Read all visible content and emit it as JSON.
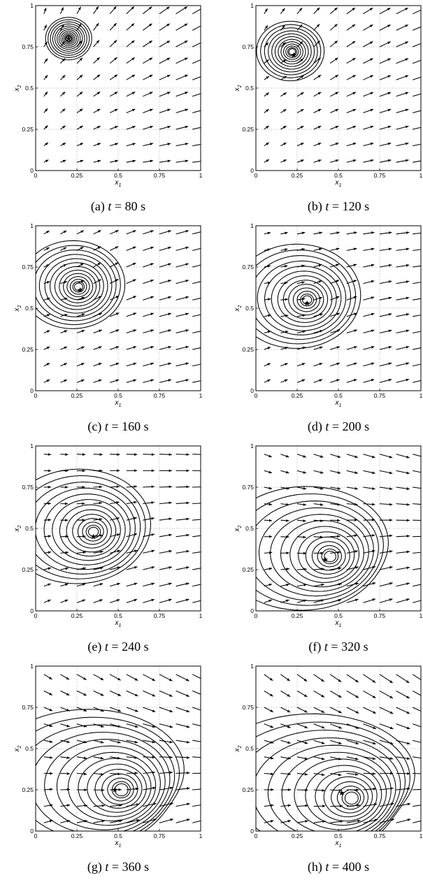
{
  "chart_data": [
    {
      "type": "contour",
      "panel": "a",
      "caption": {
        "label": "(a) ",
        "var": "t",
        "eq": " = ",
        "value": "80",
        "unit": " s"
      },
      "xlabel": "x",
      "xlabel_sub": "1",
      "ylabel": "x",
      "ylabel_sub": "2",
      "xlim": [
        0,
        1
      ],
      "ylim": [
        0,
        1
      ],
      "xticks": [
        "0",
        "0.25",
        "0.5",
        "0.75",
        "1"
      ],
      "yticks": [
        "0",
        "0.25",
        "0.5",
        "0.75",
        "1"
      ],
      "grid": true,
      "marker": {
        "x": 0.2,
        "y": 0.8
      },
      "center": {
        "x": 0.2,
        "y": 0.8
      },
      "contour_levels": 12,
      "inner_radius": 0.016,
      "outer_radius": 0.14,
      "spread": 0.0,
      "flow": 0.0
    },
    {
      "type": "contour",
      "panel": "b",
      "caption": {
        "label": "(b) ",
        "var": "t",
        "eq": " = ",
        "value": "120",
        "unit": " s"
      },
      "xlabel": "x",
      "xlabel_sub": "1",
      "ylabel": "x",
      "ylabel_sub": "2",
      "xlim": [
        0,
        1
      ],
      "ylim": [
        0,
        1
      ],
      "xticks": [
        "0",
        "0.25",
        "0.5",
        "0.75",
        "1"
      ],
      "yticks": [
        "0",
        "0.25",
        "0.5",
        "0.75",
        "1"
      ],
      "grid": true,
      "marker": {
        "x": 0.23,
        "y": 0.7
      },
      "center": {
        "x": 0.22,
        "y": 0.72
      },
      "contour_levels": 12,
      "inner_radius": 0.02,
      "outer_radius": 0.2,
      "spread": 0.1,
      "flow": 0.1
    },
    {
      "type": "contour",
      "panel": "c",
      "caption": {
        "label": "(c) ",
        "var": "t",
        "eq": " = ",
        "value": "160",
        "unit": " s"
      },
      "xlabel": "x",
      "xlabel_sub": "1",
      "ylabel": "x",
      "ylabel_sub": "2",
      "xlim": [
        0,
        1
      ],
      "ylim": [
        0,
        1
      ],
      "xticks": [
        "0",
        "0.25",
        "0.5",
        "0.75",
        "1"
      ],
      "yticks": [
        "0",
        "0.25",
        "0.5",
        "0.75",
        "1"
      ],
      "grid": true,
      "marker": {
        "x": 0.27,
        "y": 0.61
      },
      "center": {
        "x": 0.26,
        "y": 0.63
      },
      "contour_levels": 13,
      "inner_radius": 0.025,
      "outer_radius": 0.3,
      "spread": 0.2,
      "flow": 0.25
    },
    {
      "type": "contour",
      "panel": "d",
      "caption": {
        "label": "(d) ",
        "var": "t",
        "eq": " = ",
        "value": "200",
        "unit": " s"
      },
      "xlabel": "x",
      "xlabel_sub": "1",
      "ylabel": "x",
      "ylabel_sub": "2",
      "xlim": [
        0,
        1
      ],
      "ylim": [
        0,
        1
      ],
      "xticks": [
        "0",
        "0.25",
        "0.5",
        "0.75",
        "1"
      ],
      "yticks": [
        "0",
        "0.25",
        "0.5",
        "0.75",
        "1"
      ],
      "grid": true,
      "marker": {
        "x": 0.31,
        "y": 0.53
      },
      "center": {
        "x": 0.31,
        "y": 0.55
      },
      "contour_levels": 13,
      "inner_radius": 0.028,
      "outer_radius": 0.36,
      "spread": 0.3,
      "flow": 0.35
    },
    {
      "type": "contour",
      "panel": "e",
      "caption": {
        "label": "(e) ",
        "var": "t",
        "eq": " = ",
        "value": "240",
        "unit": " s"
      },
      "xlabel": "x",
      "xlabel_sub": "1",
      "ylabel": "x",
      "ylabel_sub": "2",
      "xlim": [
        0,
        1
      ],
      "ylim": [
        0,
        1
      ],
      "xticks": [
        "0",
        "0.25",
        "0.5",
        "0.75",
        "1"
      ],
      "yticks": [
        "0",
        "0.25",
        "0.5",
        "0.75",
        "1"
      ],
      "grid": true,
      "marker": {
        "x": 0.35,
        "y": 0.45
      },
      "center": {
        "x": 0.35,
        "y": 0.48
      },
      "contour_levels": 13,
      "inner_radius": 0.03,
      "outer_radius": 0.4,
      "spread": 0.4,
      "flow": 0.45
    },
    {
      "type": "contour",
      "panel": "f",
      "caption": {
        "label": "(f) ",
        "var": "t",
        "eq": " = ",
        "value": "320",
        "unit": " s"
      },
      "xlabel": "x",
      "xlabel_sub": "1",
      "ylabel": "x",
      "ylabel_sub": "2",
      "xlim": [
        0,
        1
      ],
      "ylim": [
        0,
        1
      ],
      "xticks": [
        "0",
        "0.25",
        "0.5",
        "0.75",
        "1"
      ],
      "yticks": [
        "0",
        "0.25",
        "0.5",
        "0.75",
        "1"
      ],
      "grid": true,
      "marker": {
        "x": 0.42,
        "y": 0.31
      },
      "center": {
        "x": 0.45,
        "y": 0.33
      },
      "contour_levels": 13,
      "inner_radius": 0.035,
      "outer_radius": 0.44,
      "spread": 0.6,
      "flow": 0.6
    },
    {
      "type": "contour",
      "panel": "g",
      "caption": {
        "label": "(g) ",
        "var": "t",
        "eq": " = ",
        "value": "360",
        "unit": " s"
      },
      "xlabel": "x",
      "xlabel_sub": "1",
      "ylabel": "x",
      "ylabel_sub": "2",
      "xlim": [
        0,
        1
      ],
      "ylim": [
        0,
        1
      ],
      "xticks": [
        "0",
        "0.25",
        "0.5",
        "0.75",
        "1"
      ],
      "yticks": [
        "0",
        "0.25",
        "0.5",
        "0.75",
        "1"
      ],
      "grid": true,
      "marker": {
        "x": 0.48,
        "y": 0.25
      },
      "center": {
        "x": 0.52,
        "y": 0.25
      },
      "contour_levels": 14,
      "inner_radius": 0.04,
      "outer_radius": 0.5,
      "spread": 0.75,
      "flow": 0.75
    },
    {
      "type": "contour",
      "panel": "h",
      "caption": {
        "label": "(h) ",
        "var": "t",
        "eq": " = ",
        "value": "400",
        "unit": " s"
      },
      "xlabel": "x",
      "xlabel_sub": "1",
      "ylabel": "x",
      "ylabel_sub": "2",
      "xlim": [
        0,
        1
      ],
      "ylim": [
        0,
        1
      ],
      "xticks": [
        "0",
        "0.25",
        "0.5",
        "0.75",
        "1"
      ],
      "yticks": [
        "0",
        "0.25",
        "0.5",
        "0.75",
        "1"
      ],
      "grid": true,
      "marker": {
        "x": 0.52,
        "y": 0.23
      },
      "center": {
        "x": 0.58,
        "y": 0.2
      },
      "contour_levels": 14,
      "inner_radius": 0.04,
      "outer_radius": 0.52,
      "spread": 0.85,
      "flow": 0.85
    }
  ]
}
